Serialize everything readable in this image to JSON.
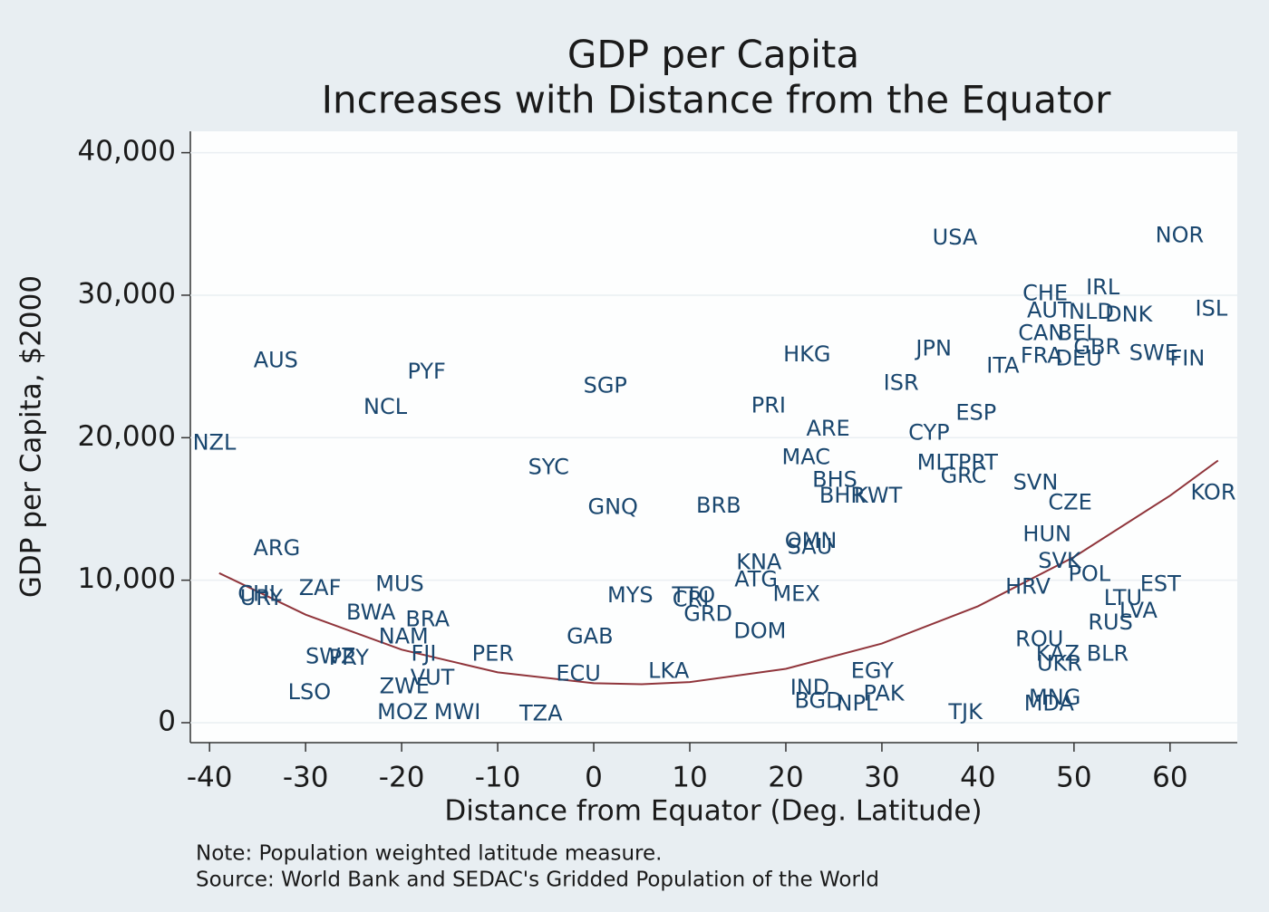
{
  "chart_data": {
    "type": "scatter",
    "title": [
      "GDP per Capita",
      "Increases with Distance from the Equator"
    ],
    "x_label": "Distance from Equator (Deg. Latitude)",
    "y_label": "GDP per Capita, $2000",
    "notes": [
      "Note: Population weighted latitude measure.",
      "Source: World Bank and SEDAC's Gridded Population of the World"
    ],
    "color": "#1a476f",
    "labels": [
      "USA",
      "NOR",
      "CHE",
      "IRL",
      "AUT",
      "NLD",
      "DNK",
      "ISL",
      "CAN",
      "BEL",
      "GBR",
      "FRA",
      "DEU",
      "SWE",
      "FIN",
      "ITA",
      "JPN",
      "HKG",
      "ISR",
      "ESP",
      "PRI",
      "ARE",
      "CYP",
      "MAC",
      "MLT",
      "PRT",
      "GRC",
      "SVN",
      "CZE",
      "KOR",
      "BHS",
      "BHR",
      "KWT",
      "BRB",
      "GNQ",
      "SYC",
      "SGP",
      "PYF",
      "NCL",
      "AUS",
      "NZL",
      "ARG",
      "HUN",
      "SVK",
      "POL",
      "EST",
      "HRV",
      "LTU",
      "LVA",
      "RUS",
      "OMN",
      "SAU",
      "KNA",
      "ATG",
      "MEX",
      "MYS",
      "TTO",
      "CRI",
      "GRD",
      "MUS",
      "ZAF",
      "CHL",
      "URY",
      "BWA",
      "BRA",
      "NAM",
      "GAB",
      "DOM",
      "SWZ",
      "PRY",
      "PER",
      "ROU",
      "BLR",
      "KAZ",
      "UKR",
      "ECU",
      "LKA",
      "IND",
      "EGY",
      "PAK",
      "MNG",
      "MDA",
      "TJK",
      "NPL",
      "BGD",
      "LSO",
      "ZWE",
      "MOZ",
      "MWI",
      "TZA",
      "VUT",
      "FJI"
    ],
    "x": [
      37.6,
      61.0,
      47.0,
      53.0,
      47.4,
      51.8,
      55.7,
      64.3,
      46.6,
      50.4,
      52.4,
      46.6,
      50.5,
      58.3,
      61.8,
      42.6,
      35.4,
      22.2,
      32.0,
      39.8,
      18.2,
      24.4,
      34.9,
      22.1,
      35.8,
      40.0,
      38.5,
      46.0,
      49.6,
      64.5,
      25.1,
      25.9,
      29.6,
      13.0,
      2.0,
      -4.7,
      1.2,
      -17.4,
      -21.7,
      -33.1,
      -39.5,
      -33.0,
      47.2,
      48.5,
      51.6,
      59.0,
      45.2,
      55.1,
      56.7,
      53.8,
      22.6,
      22.5,
      17.2,
      16.9,
      21.1,
      3.8,
      10.4,
      10.1,
      11.9,
      -20.2,
      -28.5,
      -34.8,
      -34.6,
      -23.2,
      -17.3,
      -19.8,
      -0.4,
      17.3,
      -27.4,
      -25.5,
      -10.5,
      46.4,
      53.5,
      48.3,
      48.5,
      -1.6,
      7.8,
      22.5,
      29.0,
      30.2,
      48.0,
      47.4,
      38.7,
      27.4,
      23.4,
      -29.6,
      -19.7,
      -19.9,
      -14.2,
      -5.5,
      -16.8,
      -17.7
    ],
    "values": [
      34000,
      34150,
      30100,
      30500,
      28900,
      28800,
      28600,
      29000,
      27300,
      27300,
      26300,
      25700,
      25500,
      25900,
      25500,
      25000,
      26200,
      25800,
      23800,
      21700,
      22200,
      20600,
      20300,
      18600,
      18200,
      18200,
      17300,
      16800,
      15400,
      16100,
      17000,
      15900,
      15900,
      15200,
      15100,
      17900,
      23600,
      24600,
      22100,
      25400,
      19600,
      12200,
      13200,
      11300,
      10400,
      9700,
      9500,
      8700,
      7800,
      7000,
      12700,
      12300,
      11200,
      10000,
      9000,
      8900,
      8900,
      8600,
      7600,
      9700,
      9400,
      9000,
      8700,
      7700,
      7200,
      6000,
      6000,
      6400,
      4600,
      4500,
      4800,
      5800,
      4800,
      4800,
      4100,
      3400,
      3600,
      2400,
      3600,
      2000,
      1700,
      1300,
      700,
      1300,
      1500,
      2100,
      2500,
      700,
      700,
      600,
      3100,
      4800
    ],
    "fit": {
      "color": "#90353b",
      "x": [
        -39,
        -30,
        -20,
        -10,
        0,
        5,
        10,
        20,
        30,
        40,
        50,
        60,
        65
      ],
      "values": [
        10500,
        7580,
        5130,
        3530,
        2770,
        2700,
        2850,
        3780,
        5550,
        8170,
        11630,
        15930,
        18400
      ]
    },
    "xlim": [
      -42,
      67
    ],
    "ylim": [
      -1400,
      41500
    ],
    "xticks": [
      -40,
      -30,
      -20,
      -10,
      0,
      10,
      20,
      30,
      40,
      50,
      60
    ],
    "yticks": [
      {
        "value": 0,
        "label": "0"
      },
      {
        "value": 10000,
        "label": "10,000"
      },
      {
        "value": 20000,
        "label": "20,000"
      },
      {
        "value": 30000,
        "label": "30,000"
      },
      {
        "value": 40000,
        "label": "40,000"
      }
    ],
    "grid": true
  }
}
